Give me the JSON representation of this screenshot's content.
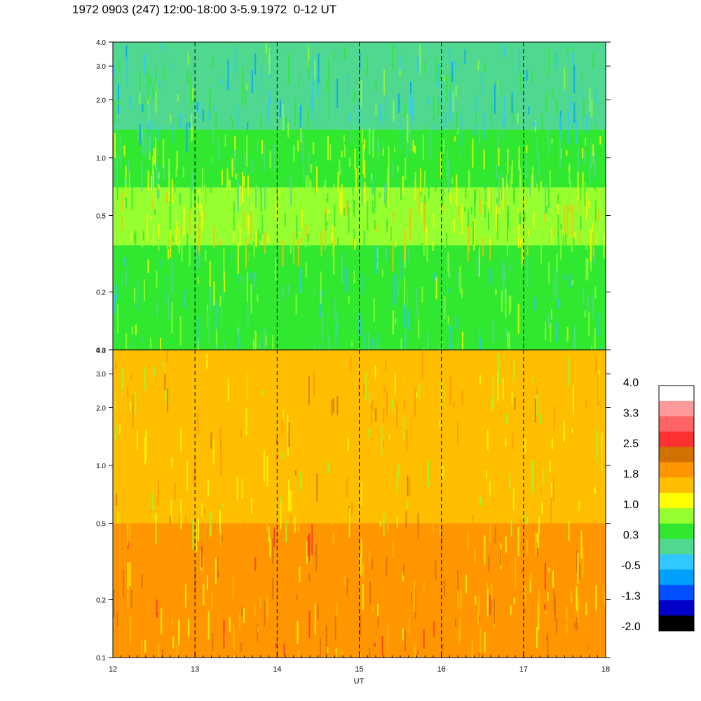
{
  "title": "1972 0903 (247) 12:00-18:00 3-5.9.1972  0-12 UT",
  "chart_data": [
    {
      "type": "heatmap",
      "panel": "top",
      "y_scale": "log",
      "ylim": [
        0.1,
        4.0
      ],
      "y_ticks": [
        0.1,
        0.2,
        0.5,
        1.0,
        2.0,
        3.0,
        4.0
      ],
      "y_tick_labels": [
        "0.1",
        "0.2",
        "0.5",
        "1.0",
        "2.0",
        "3.0",
        "4.0"
      ],
      "xlim": [
        12,
        18
      ],
      "dashed_hours": [
        13,
        14,
        15,
        16,
        17
      ],
      "bands": [
        {
          "y_from": 0.1,
          "y_to": 0.35,
          "level": 0.3
        },
        {
          "y_from": 0.35,
          "y_to": 0.7,
          "level": 1.0
        },
        {
          "y_from": 0.7,
          "y_to": 1.4,
          "level": 0.6
        },
        {
          "y_from": 1.4,
          "y_to": 4.0,
          "level": 0.0
        }
      ]
    },
    {
      "type": "heatmap",
      "panel": "bottom",
      "y_scale": "log",
      "ylim": [
        0.1,
        4.0
      ],
      "y_ticks": [
        0.1,
        0.2,
        0.5,
        1.0,
        2.0,
        3.0,
        4.0
      ],
      "y_tick_labels": [
        "0.1",
        "0.2",
        "0.5",
        "1.0",
        "2.0",
        "3.0",
        "4.0"
      ],
      "xlim": [
        12,
        18
      ],
      "x_ticks": [
        12,
        13,
        14,
        15,
        16,
        17,
        18
      ],
      "x_tick_labels": [
        "12",
        "13",
        "14",
        "15",
        "16",
        "17",
        "18"
      ],
      "xlabel": "UT",
      "dashed_hours": [
        13,
        14,
        15,
        16,
        17
      ],
      "bands": [
        {
          "y_from": 0.1,
          "y_to": 0.5,
          "level": 1.9
        },
        {
          "y_from": 0.5,
          "y_to": 4.0,
          "level": 1.5
        }
      ]
    }
  ],
  "colorbar": {
    "labels": [
      "4.0",
      "3.3",
      "2.5",
      "1.8",
      "1.0",
      "0.3",
      "-0.5",
      "-1.3",
      "-2.0"
    ],
    "colors": [
      "#ffffff",
      "#ff9a9a",
      "#ff6464",
      "#ff3030",
      "#d27000",
      "#ff9600",
      "#ffbe00",
      "#ffff00",
      "#96ff30",
      "#30e830",
      "#50d890",
      "#30c8ff",
      "#00a0ff",
      "#0050ff",
      "#0000c8",
      "#000000"
    ]
  }
}
